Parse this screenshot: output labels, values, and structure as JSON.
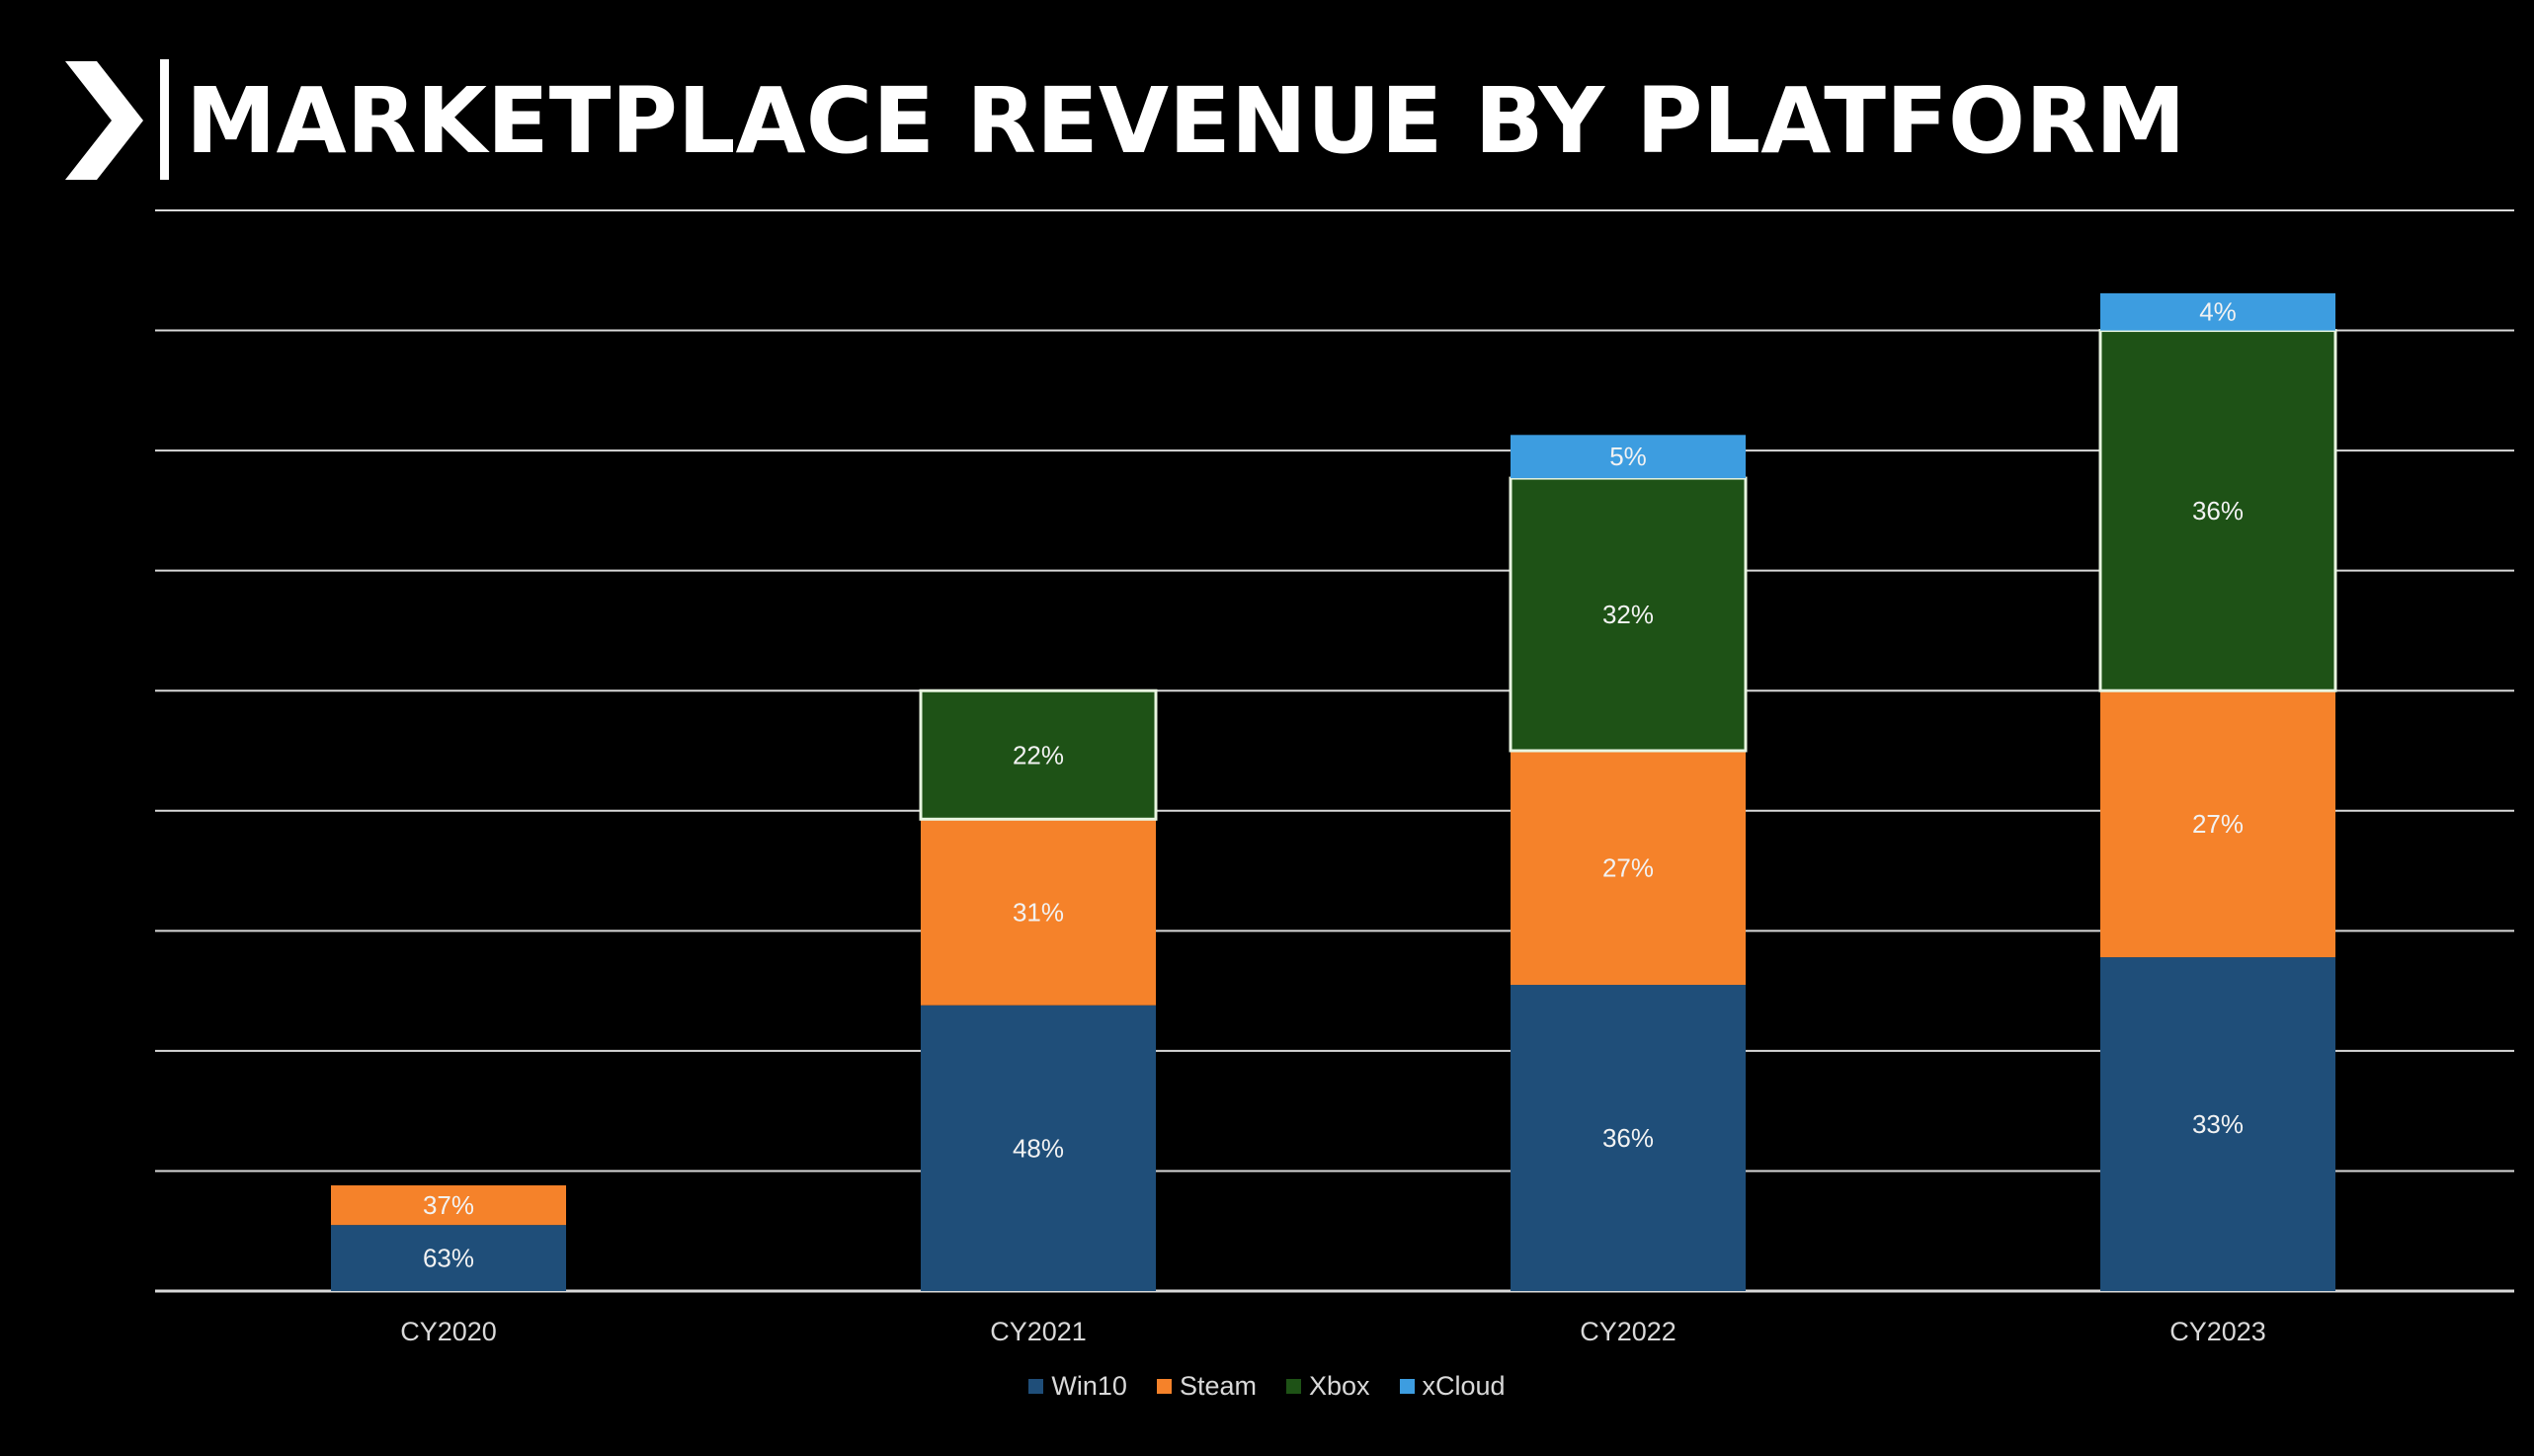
{
  "title": "MARKETPLACE REVENUE BY PLATFORM",
  "colors": {
    "background": "#000000",
    "gridline": "#d9d9d9",
    "text": "#ffffff",
    "win10": "#1f4e79",
    "steam": "#f5822a",
    "xbox": "#1e5216",
    "xcloud": "#3d9de0"
  },
  "chart_data": {
    "type": "bar",
    "stacked": true,
    "categories": [
      "CY2020",
      "CY2021",
      "CY2022",
      "CY2023"
    ],
    "ylim": [
      0,
      9
    ],
    "grid": true,
    "legend_position": "bottom",
    "y_axis_labels": false,
    "note": "Y axis is unlabeled; segment heights are relative totals estimated in gridline units; bar labels show share percentages.",
    "series": [
      {
        "name": "Win10",
        "color": "#1f4e79",
        "values": [
          0.55,
          2.38,
          2.55,
          2.78
        ],
        "labels": [
          "63%",
          "48%",
          "36%",
          "33%"
        ]
      },
      {
        "name": "Steam",
        "color": "#f5822a",
        "values": [
          0.33,
          1.55,
          1.95,
          2.22
        ],
        "labels": [
          "37%",
          "31%",
          "27%",
          "27%"
        ]
      },
      {
        "name": "Xbox",
        "color": "#1e5216",
        "values": [
          0,
          1.07,
          2.27,
          3.0
        ],
        "labels": [
          "",
          "22%",
          "32%",
          "36%"
        ]
      },
      {
        "name": "xCloud",
        "color": "#3d9de0",
        "values": [
          0,
          0,
          0.36,
          0.31
        ],
        "labels": [
          "",
          "",
          "5%",
          "4%"
        ]
      }
    ]
  }
}
